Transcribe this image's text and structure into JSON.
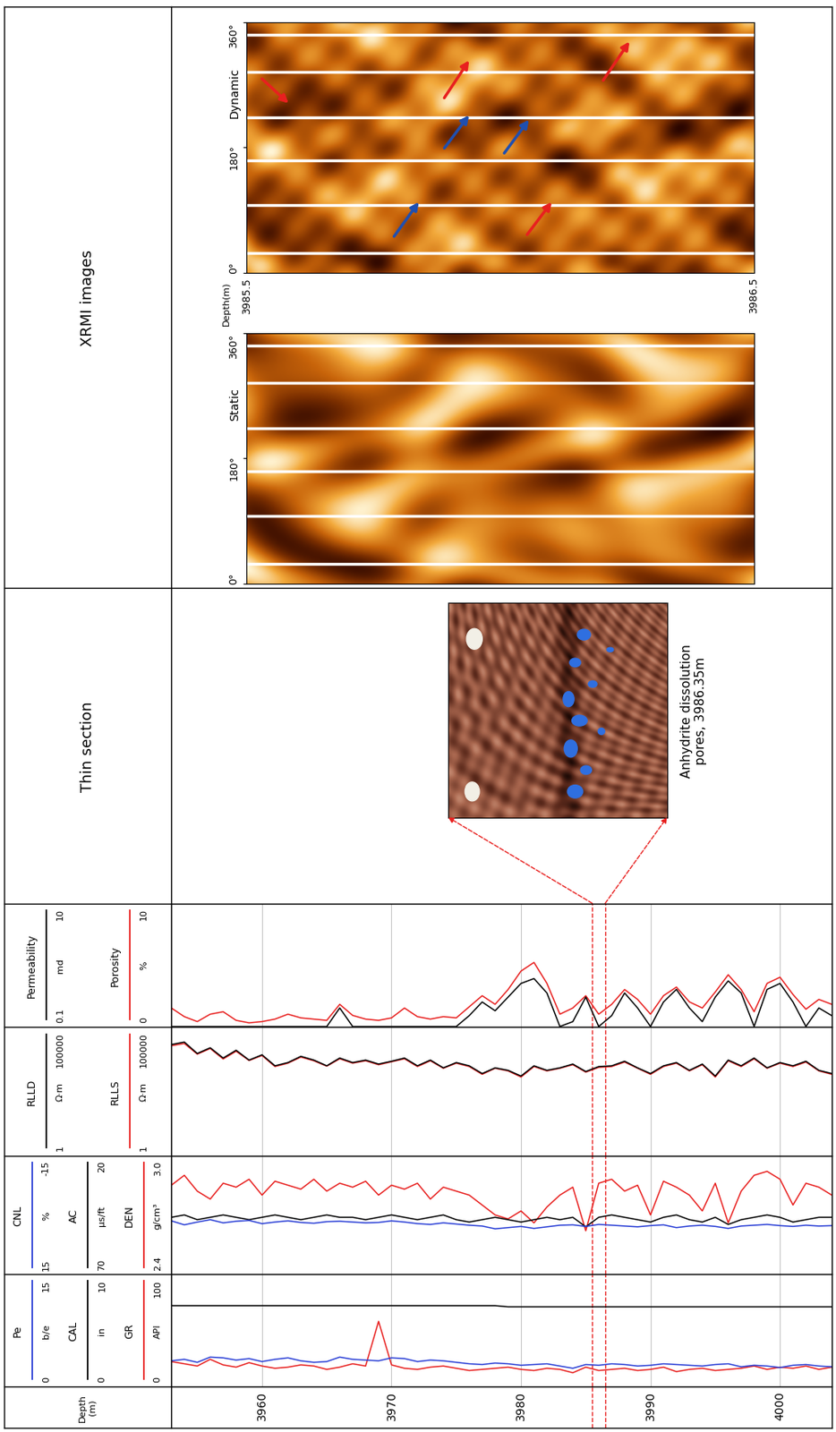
{
  "chart_data": {
    "type": "well_log",
    "depth_label": "Depth\n(m)",
    "depth": [
      3953,
      3954,
      3955,
      3956,
      3957,
      3958,
      3959,
      3960,
      3961,
      3962,
      3963,
      3964,
      3965,
      3966,
      3967,
      3968,
      3969,
      3970,
      3971,
      3972,
      3973,
      3974,
      3975,
      3976,
      3977,
      3978,
      3979,
      3980,
      3981,
      3982,
      3983,
      3984,
      3985,
      3986,
      3987,
      3988,
      3989,
      3990,
      3991,
      3992,
      3993,
      3994,
      3995,
      3996,
      3997,
      3998,
      3999,
      4000,
      4001,
      4002,
      4003,
      4004
    ],
    "xlim": [
      3953,
      4004
    ],
    "xticks": [
      3960,
      3970,
      3980,
      3990,
      4000
    ],
    "grid": true,
    "tick_labels": "x",
    "tracks": [
      {
        "series": [
          {
            "name": "Permeability",
            "unit": "md",
            "color": "#000000",
            "log": true,
            "range": [
              0.1,
              10
            ],
            "values": [
              0.1,
              0.1,
              0.1,
              0.1,
              0.1,
              0.1,
              0.1,
              0.1,
              0.1,
              0.1,
              0.1,
              0.1,
              0.1,
              0.2,
              0.1,
              0.1,
              0.1,
              0.1,
              0.1,
              0.1,
              0.1,
              0.1,
              0.1,
              0.15,
              0.25,
              0.18,
              0.3,
              0.5,
              0.6,
              0.35,
              0.1,
              0.12,
              0.3,
              0.1,
              0.15,
              0.35,
              0.2,
              0.1,
              0.25,
              0.4,
              0.2,
              0.12,
              0.3,
              0.55,
              0.35,
              0.1,
              0.4,
              0.5,
              0.25,
              0.1,
              0.2,
              0.15
            ]
          },
          {
            "name": "Porosity",
            "unit": "%",
            "color": "#e8201f",
            "range": [
              0,
              10
            ],
            "values": [
              1.5,
              0.8,
              0.4,
              1.0,
              1.2,
              0.5,
              0.3,
              0.4,
              0.6,
              1.0,
              0.7,
              0.6,
              0.5,
              1.8,
              0.9,
              0.6,
              0.5,
              0.7,
              1.5,
              0.8,
              0.6,
              0.8,
              0.7,
              1.6,
              2.5,
              1.8,
              3.0,
              4.5,
              5.2,
              3.5,
              1.0,
              1.5,
              2.5,
              1.0,
              1.8,
              3.0,
              2.2,
              1.0,
              2.5,
              3.2,
              2.0,
              1.5,
              2.8,
              4.2,
              3.0,
              1.2,
              3.5,
              4.0,
              2.6,
              1.4,
              2.2,
              1.8
            ]
          }
        ]
      },
      {
        "series": [
          {
            "name": "RLLD",
            "unit": "Ω·m",
            "color": "#000000",
            "log": true,
            "range": [
              1,
              100000
            ],
            "values": [
              20000,
              25000,
              9000,
              15000,
              6000,
              12000,
              5000,
              8000,
              3000,
              4000,
              7000,
              5000,
              3000,
              6000,
              4000,
              5000,
              3500,
              4500,
              6000,
              3000,
              5000,
              2500,
              4000,
              3000,
              1500,
              2500,
              2000,
              1200,
              3000,
              2000,
              2500,
              3500,
              1800,
              2800,
              3000,
              4500,
              2500,
              1500,
              3000,
              4000,
              2000,
              3500,
              1200,
              5000,
              3000,
              6000,
              2500,
              4000,
              3000,
              4500,
              2000,
              1500
            ]
          },
          {
            "name": "RLLS",
            "unit": "Ω·m",
            "color": "#e8201f",
            "log": true,
            "range": [
              1,
              100000
            ],
            "values": [
              18000,
              22000,
              8500,
              14000,
              5500,
              11000,
              4800,
              7500,
              2800,
              3800,
              6500,
              4700,
              2900,
              5600,
              3800,
              4700,
              3300,
              4300,
              5600,
              2800,
              4700,
              2400,
              3800,
              2800,
              1400,
              2400,
              1900,
              1100,
              2800,
              1900,
              2400,
              3300,
              1700,
              2600,
              2800,
              4200,
              2400,
              1400,
              2800,
              3800,
              1900,
              3300,
              1100,
              4700,
              2800,
              5600,
              2400,
              3800,
              2800,
              4200,
              1900,
              1400
            ]
          }
        ]
      },
      {
        "series": [
          {
            "name": "CNL",
            "unit": "%",
            "color": "#2a3fd6",
            "range": [
              15,
              -15
            ],
            "values": [
              1.5,
              2.5,
              1.8,
              1.2,
              2.0,
              1.6,
              1.4,
              2.2,
              1.8,
              1.5,
              1.9,
              2.1,
              1.7,
              1.6,
              1.8,
              2.0,
              1.9,
              1.5,
              1.8,
              2.2,
              2.4,
              2.0,
              2.3,
              2.6,
              2.8,
              3.5,
              3.2,
              2.9,
              3.4,
              3.0,
              2.6,
              2.5,
              2.9,
              2.4,
              2.6,
              2.8,
              3.0,
              2.7,
              2.5,
              3.2,
              2.8,
              2.6,
              2.9,
              3.4,
              2.8,
              2.6,
              2.4,
              2.7,
              2.9,
              2.6,
              2.8,
              2.7
            ]
          },
          {
            "name": "AC",
            "unit": "μs/ft",
            "color": "#000000",
            "range": [
              70,
              20
            ],
            "values": [
              46,
              45,
              47,
              46,
              45,
              46,
              47,
              46,
              45,
              46,
              47,
              46,
              45,
              46,
              46,
              47,
              46,
              45,
              46,
              47,
              46,
              45,
              47,
              48,
              47,
              46,
              47,
              48,
              47,
              46,
              47,
              46,
              50,
              46,
              45,
              46,
              47,
              48,
              46,
              45,
              47,
              48,
              46,
              49,
              47,
              46,
              45,
              46,
              48,
              47,
              46,
              46
            ]
          },
          {
            "name": "DEN",
            "unit": "g/cm³",
            "color": "#e8201f",
            "range": [
              2.4,
              3.0
            ],
            "values": [
              2.85,
              2.9,
              2.82,
              2.78,
              2.86,
              2.84,
              2.88,
              2.8,
              2.87,
              2.85,
              2.83,
              2.88,
              2.82,
              2.86,
              2.84,
              2.87,
              2.8,
              2.85,
              2.83,
              2.86,
              2.78,
              2.84,
              2.82,
              2.8,
              2.75,
              2.7,
              2.68,
              2.72,
              2.66,
              2.74,
              2.8,
              2.84,
              2.62,
              2.86,
              2.88,
              2.82,
              2.85,
              2.7,
              2.87,
              2.84,
              2.8,
              2.72,
              2.86,
              2.66,
              2.82,
              2.9,
              2.92,
              2.88,
              2.75,
              2.86,
              2.84,
              2.8
            ]
          }
        ]
      },
      {
        "series": [
          {
            "name": "Pe",
            "unit": "b/e",
            "color": "#2a3fd6",
            "range": [
              0,
              15
            ],
            "values": [
              3.4,
              3.6,
              3.2,
              3.9,
              3.8,
              3.5,
              3.7,
              3.3,
              3.6,
              3.8,
              3.4,
              3.2,
              3.3,
              3.9,
              3.6,
              3.5,
              3.4,
              3.8,
              3.7,
              3.3,
              3.5,
              3.4,
              3.2,
              3.0,
              2.9,
              3.1,
              3.0,
              2.8,
              2.9,
              3.0,
              2.7,
              2.4,
              2.9,
              2.8,
              3.0,
              2.9,
              2.7,
              2.8,
              3.0,
              2.9,
              2.8,
              2.7,
              2.9,
              3.0,
              2.6,
              2.8,
              2.7,
              2.5,
              2.8,
              2.9,
              2.7,
              2.6
            ]
          },
          {
            "name": "CAL",
            "unit": "in",
            "color": "#000000",
            "range": [
              0,
              10
            ],
            "values": [
              7.2,
              7.2,
              7.2,
              7.2,
              7.2,
              7.2,
              7.2,
              7.2,
              7.2,
              7.2,
              7.2,
              7.2,
              7.2,
              7.2,
              7.2,
              7.2,
              7.2,
              7.2,
              7.2,
              7.2,
              7.2,
              7.2,
              7.2,
              7.2,
              7.2,
              7.2,
              7.1,
              7.1,
              7.1,
              7.1,
              7.1,
              7.1,
              7.1,
              7.1,
              7.1,
              7.1,
              7.1,
              7.1,
              7.1,
              7.1,
              7.1,
              7.1,
              7.1,
              7.1,
              7.1,
              7.1,
              7.1,
              7.1,
              7.1,
              7.1,
              7.1,
              7.1
            ]
          },
          {
            "name": "GR",
            "unit": "API",
            "color": "#e8201f",
            "range": [
              0,
              100
            ],
            "values": [
              22,
              20,
              18,
              24,
              19,
              17,
              21,
              18,
              16,
              17,
              19,
              18,
              15,
              17,
              20,
              18,
              58,
              19,
              16,
              15,
              17,
              18,
              16,
              14,
              15,
              16,
              17,
              15,
              14,
              16,
              15,
              12,
              17,
              14,
              15,
              16,
              14,
              15,
              17,
              13,
              15,
              16,
              14,
              15,
              16,
              18,
              15,
              17,
              16,
              18,
              15,
              17
            ]
          }
        ]
      }
    ]
  },
  "thin_section": {
    "title": "Thin section",
    "caption": "Anhydrite dissolution\npores, 3986.35m"
  },
  "xrmi_images": {
    "title": "XRMI images",
    "panels": [
      {
        "name": "Dynamic"
      },
      {
        "name": "Static"
      }
    ],
    "azimuth_ticks": [
      {
        "value": 0,
        "label": "0°"
      },
      {
        "value": 180,
        "label": "180°"
      },
      {
        "value": 360,
        "label": "360°"
      }
    ],
    "depth_label": "Depth(m)",
    "depth_range": [
      3985.5,
      3986.5
    ]
  }
}
